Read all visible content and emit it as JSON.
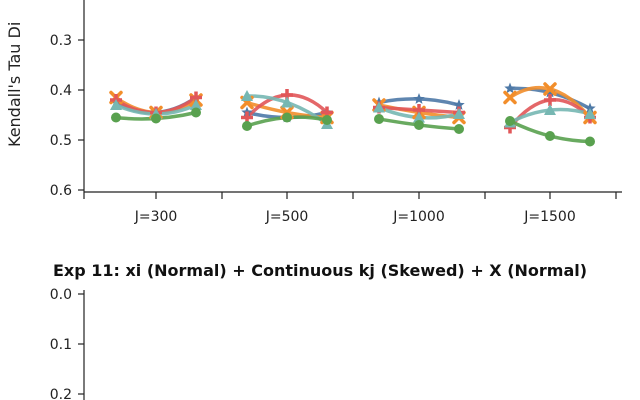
{
  "chart_data": [
    {
      "type": "line",
      "title": "",
      "ylabel": "Kendall's Tau Di",
      "ylim": [
        0.6,
        0.3
      ],
      "y_inverted": true,
      "y_ticks": [
        "0.3",
        "0.4",
        "0.5",
        "0.6"
      ],
      "categories": [
        "J=300",
        "J=500",
        "J=1000",
        "J=1500"
      ],
      "series": [
        {
          "color": "#4e79a7",
          "marker": "star",
          "values": [
            [
              0.425,
              0.445,
              0.415
            ],
            [
              0.445,
              0.455,
              0.445
            ],
            [
              0.425,
              0.418,
              0.43
            ],
            [
              0.397,
              0.405,
              0.437
            ]
          ]
        },
        {
          "color": "#f28e2b",
          "marker": "x",
          "values": [
            [
              0.415,
              0.445,
              0.42
            ],
            [
              0.425,
              0.445,
              0.455
            ],
            [
              0.43,
              0.445,
              0.455
            ],
            [
              0.415,
              0.398,
              0.455
            ]
          ]
        },
        {
          "color": "#e15759",
          "marker": "plus",
          "values": [
            [
              0.42,
              0.445,
              0.415
            ],
            [
              0.455,
              0.41,
              0.445
            ],
            [
              0.435,
              0.44,
              0.445
            ],
            [
              0.475,
              0.42,
              0.455
            ]
          ]
        },
        {
          "color": "#76b7b2",
          "marker": "triangle",
          "values": [
            [
              0.43,
              0.448,
              0.43
            ],
            [
              0.412,
              0.425,
              0.468
            ],
            [
              0.435,
              0.455,
              0.448
            ],
            [
              0.465,
              0.44,
              0.448
            ]
          ]
        },
        {
          "color": "#59a14f",
          "marker": "circle",
          "values": [
            [
              0.455,
              0.457,
              0.445
            ],
            [
              0.472,
              0.455,
              0.46
            ],
            [
              0.458,
              0.47,
              0.478
            ],
            [
              0.462,
              0.492,
              0.503
            ]
          ]
        }
      ]
    },
    {
      "type": "line",
      "title": "Exp 11: xi (Normal) + Continuous kj (Skewed) + X (Normal)",
      "y_ticks": [
        "0.0",
        "0.1",
        "0.2"
      ],
      "ylim": [
        0.0,
        0.2
      ],
      "y_inverted": true,
      "series": []
    }
  ]
}
